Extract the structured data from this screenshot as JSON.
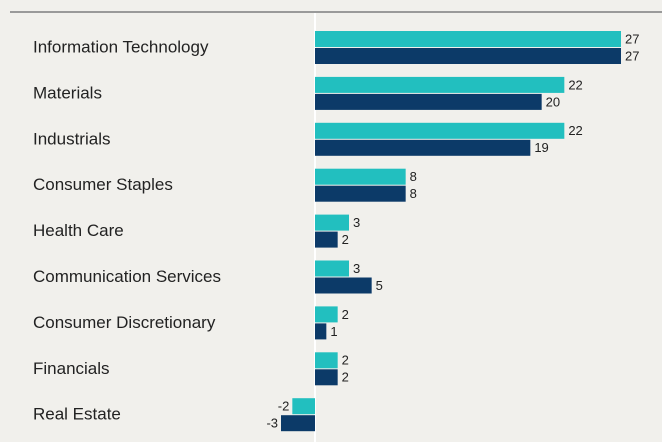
{
  "chart_data": {
    "type": "hbar",
    "categories": [
      "Information Technology",
      "Materials",
      "Industrials",
      "Consumer Staples",
      "Health Care",
      "Communication Services",
      "Consumer Discretionary",
      "Financials",
      "Real Estate"
    ],
    "series": [
      {
        "color": "#22bfbf",
        "values": [
          27,
          22,
          22,
          8,
          3,
          3,
          2,
          2,
          -2
        ]
      },
      {
        "color": "#0c3a68",
        "values": [
          27,
          20,
          19,
          8,
          2,
          5,
          1,
          2,
          -3
        ]
      }
    ],
    "xlim": [
      -3,
      27
    ]
  }
}
